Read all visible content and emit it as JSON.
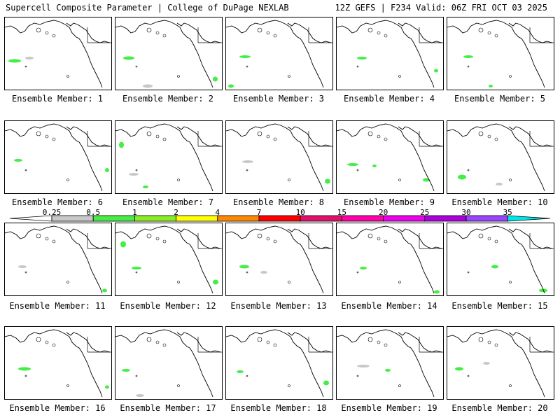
{
  "header": {
    "title_left": "Supercell Composite Parameter | College of DuPage NEXLAB",
    "title_right": "12Z GEFS | F234 Valid: 06Z FRI OCT 03 2025"
  },
  "member_label_prefix": "Ensemble Member:",
  "members": [
    {
      "id": "1",
      "label": "Ensemble Member: 1"
    },
    {
      "id": "2",
      "label": "Ensemble Member: 2"
    },
    {
      "id": "3",
      "label": "Ensemble Member: 3"
    },
    {
      "id": "4",
      "label": "Ensemble Member: 4"
    },
    {
      "id": "5",
      "label": "Ensemble Member: 5"
    },
    {
      "id": "6",
      "label": "Ensemble Member: 6"
    },
    {
      "id": "7",
      "label": "Ensemble Member: 7"
    },
    {
      "id": "8",
      "label": "Ensemble Member: 8"
    },
    {
      "id": "9",
      "label": "Ensemble Member: 9"
    },
    {
      "id": "10",
      "label": "Ensemble Member: 10"
    },
    {
      "id": "11",
      "label": "Ensemble Member: 11"
    },
    {
      "id": "12",
      "label": "Ensemble Member: 12"
    },
    {
      "id": "13",
      "label": "Ensemble Member: 13"
    },
    {
      "id": "14",
      "label": "Ensemble Member: 14"
    },
    {
      "id": "15",
      "label": "Ensemble Member: 15"
    },
    {
      "id": "16",
      "label": "Ensemble Member: 16"
    },
    {
      "id": "17",
      "label": "Ensemble Member: 17"
    },
    {
      "id": "18",
      "label": "Ensemble Member: 18"
    },
    {
      "id": "19",
      "label": "Ensemble Member: 19"
    },
    {
      "id": "20",
      "label": "Ensemble Member: 20"
    }
  ],
  "colorbar": {
    "labels": [
      "0.25",
      "0.5",
      "1",
      "2",
      "4",
      "7",
      "10",
      "15",
      "20",
      "25",
      "30",
      "35"
    ],
    "colors": [
      "#c8c8c8",
      "#44ee44",
      "#88ee22",
      "#ffff00",
      "#ff8800",
      "#ff0000",
      "#e0106a",
      "#ff00aa",
      "#ee00ee",
      "#aa00dd",
      "#9944ff",
      "#00e5e5"
    ],
    "low_cap_color": "#ffffff",
    "high_cap_color": "#00e5e5"
  },
  "colors": {
    "background": "#ffffff",
    "outline": "#000000",
    "low": "#c8c8c8",
    "mid": "#44ee44"
  }
}
